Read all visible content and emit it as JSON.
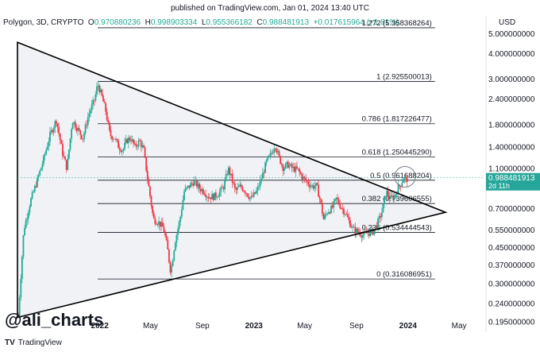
{
  "published": "published on TradingView.com, Jan 01, 2024 13:40 UTC",
  "header": {
    "symbol": "Polygon, 3D, CRYPTO",
    "o_label": "O",
    "o": "0.970880236",
    "h_label": "H",
    "h": "0.998903334",
    "l_label": "L",
    "l": "0.955366182",
    "c_label": "C",
    "c": "0.988481913",
    "change": "+0.017615964 (+1.81%)"
  },
  "currency": "USD",
  "watermark": "@ali_charts",
  "brand": "TradingView",
  "colors": {
    "up": "#22ab94",
    "down": "#f23645",
    "line": "#000000",
    "triangle_fill": "#f0f2f5",
    "price_label": "#26a69a"
  },
  "chart_data": {
    "type": "candlestick",
    "y_scale": "log",
    "y_range": [
      0.19,
      5.6
    ],
    "y_ticks": [
      {
        "v": 5.0,
        "label": "5.000000000"
      },
      {
        "v": 4.0,
        "label": "4.000000000"
      },
      {
        "v": 3.0,
        "label": "3.000000000"
      },
      {
        "v": 2.4,
        "label": "2.400000000"
      },
      {
        "v": 1.8,
        "label": "1.800000000"
      },
      {
        "v": 1.4,
        "label": "1.400000000"
      },
      {
        "v": 1.1,
        "label": "1.100000000"
      },
      {
        "v": 0.7,
        "label": "0.700000000"
      },
      {
        "v": 0.55,
        "label": "0.550000000"
      },
      {
        "v": 0.45,
        "label": "0.450000000"
      },
      {
        "v": 0.37,
        "label": "0.370000000"
      },
      {
        "v": 0.3,
        "label": "0.300000000"
      },
      {
        "v": 0.24,
        "label": "0.240000000"
      },
      {
        "v": 0.195,
        "label": "0.195000000"
      }
    ],
    "x_range": [
      "2021-06-20",
      "2024-06-30"
    ],
    "x_ticks": [
      {
        "date": "2022-01-01",
        "label": "2022"
      },
      {
        "date": "2022-05-01",
        "label": "May"
      },
      {
        "date": "2022-09-01",
        "label": "Sep"
      },
      {
        "date": "2023-01-01",
        "label": "2023"
      },
      {
        "date": "2023-05-01",
        "label": "May"
      },
      {
        "date": "2023-09-01",
        "label": "Sep"
      },
      {
        "date": "2024-01-01",
        "label": "2024"
      },
      {
        "date": "2024-05-01",
        "label": "May"
      }
    ],
    "fib_levels": [
      {
        "ratio": "1.272",
        "value": 5.358368264,
        "label": "1.272 (5.358368264)"
      },
      {
        "ratio": "1",
        "value": 2.9255,
        "label": "1 (2.925500013)"
      },
      {
        "ratio": "0.786",
        "value": 1.817226477,
        "label": "0.786 (1.817226477)"
      },
      {
        "ratio": "0.618",
        "value": 1.25044529,
        "label": "0.618 (1.250445290)"
      },
      {
        "ratio": "0.5",
        "value": 0.961688204,
        "label": "0.5 (0.961688204)"
      },
      {
        "ratio": "0.382",
        "value": 0.739606555,
        "label": "0.382 (0.739606555)"
      },
      {
        "ratio": "0.236",
        "value": 0.534444543,
        "label": "0.236 (0.534444543)"
      },
      {
        "ratio": "0",
        "value": 0.316086951,
        "label": "0 (0.316086951)"
      }
    ],
    "fib_start": "2021-12-27",
    "fib_end": "2024-03-05",
    "triangle": [
      {
        "date": "2021-06-20",
        "value": 4.55
      },
      {
        "date": "2024-03-30",
        "value": 0.67
      },
      {
        "date": "2021-06-20",
        "value": 0.205
      }
    ],
    "current_price": {
      "value": 0.988481913,
      "label": "0.988481913",
      "countdown": "2d 11h"
    },
    "marker_circle": {
      "date": "2023-12-25",
      "value": 1.0
    },
    "price_path": [
      [
        "2021-06-22",
        0.21
      ],
      [
        "2021-07-05",
        0.55
      ],
      [
        "2021-07-20",
        0.75
      ],
      [
        "2021-08-05",
        0.95
      ],
      [
        "2021-08-20",
        1.2
      ],
      [
        "2021-09-05",
        1.6
      ],
      [
        "2021-09-20",
        1.9
      ],
      [
        "2021-10-05",
        1.3
      ],
      [
        "2021-10-15",
        1.1
      ],
      [
        "2021-10-28",
        1.9
      ],
      [
        "2021-11-10",
        1.7
      ],
      [
        "2021-11-22",
        1.55
      ],
      [
        "2021-12-05",
        2.0
      ],
      [
        "2021-12-20",
        2.4
      ],
      [
        "2021-12-27",
        2.85
      ],
      [
        "2022-01-05",
        2.5
      ],
      [
        "2022-01-15",
        2.1
      ],
      [
        "2022-01-25",
        1.6
      ],
      [
        "2022-02-05",
        1.55
      ],
      [
        "2022-02-15",
        1.4
      ],
      [
        "2022-02-25",
        1.35
      ],
      [
        "2022-03-05",
        1.5
      ],
      [
        "2022-03-15",
        1.55
      ],
      [
        "2022-03-25",
        1.4
      ],
      [
        "2022-04-05",
        1.5
      ],
      [
        "2022-04-15",
        1.35
      ],
      [
        "2022-04-25",
        0.95
      ],
      [
        "2022-05-08",
        0.62
      ],
      [
        "2022-05-20",
        0.6
      ],
      [
        "2022-06-01",
        0.56
      ],
      [
        "2022-06-10",
        0.45
      ],
      [
        "2022-06-18",
        0.34
      ],
      [
        "2022-06-28",
        0.48
      ],
      [
        "2022-07-10",
        0.62
      ],
      [
        "2022-07-20",
        0.85
      ],
      [
        "2022-08-01",
        0.9
      ],
      [
        "2022-08-12",
        0.95
      ],
      [
        "2022-08-25",
        0.88
      ],
      [
        "2022-09-05",
        0.85
      ],
      [
        "2022-09-15",
        0.8
      ],
      [
        "2022-09-28",
        0.8
      ],
      [
        "2022-10-10",
        0.83
      ],
      [
        "2022-10-22",
        0.9
      ],
      [
        "2022-11-01",
        1.1
      ],
      [
        "2022-11-08",
        1.0
      ],
      [
        "2022-11-18",
        0.85
      ],
      [
        "2022-11-30",
        0.9
      ],
      [
        "2022-12-12",
        0.85
      ],
      [
        "2022-12-25",
        0.78
      ],
      [
        "2023-01-08",
        0.85
      ],
      [
        "2023-01-20",
        1.0
      ],
      [
        "2023-02-01",
        1.2
      ],
      [
        "2023-02-12",
        1.3
      ],
      [
        "2023-02-20",
        1.45
      ],
      [
        "2023-03-01",
        1.25
      ],
      [
        "2023-03-12",
        1.1
      ],
      [
        "2023-03-22",
        1.15
      ],
      [
        "2023-04-02",
        1.1
      ],
      [
        "2023-04-15",
        1.08
      ],
      [
        "2023-04-25",
        1.0
      ],
      [
        "2023-05-05",
        0.95
      ],
      [
        "2023-05-18",
        0.9
      ],
      [
        "2023-05-30",
        0.9
      ],
      [
        "2023-06-08",
        0.75
      ],
      [
        "2023-06-15",
        0.62
      ],
      [
        "2023-06-25",
        0.68
      ],
      [
        "2023-07-05",
        0.7
      ],
      [
        "2023-07-15",
        0.78
      ],
      [
        "2023-07-25",
        0.72
      ],
      [
        "2023-08-05",
        0.67
      ],
      [
        "2023-08-15",
        0.6
      ],
      [
        "2023-08-25",
        0.55
      ],
      [
        "2023-09-05",
        0.54
      ],
      [
        "2023-09-15",
        0.52
      ],
      [
        "2023-09-28",
        0.53
      ],
      [
        "2023-10-10",
        0.54
      ],
      [
        "2023-10-22",
        0.6
      ],
      [
        "2023-11-01",
        0.68
      ],
      [
        "2023-11-10",
        0.85
      ],
      [
        "2023-11-20",
        0.78
      ],
      [
        "2023-11-30",
        0.8
      ],
      [
        "2023-12-08",
        0.88
      ],
      [
        "2023-12-15",
        0.92
      ],
      [
        "2023-12-22",
        1.0
      ],
      [
        "2023-12-28",
        0.96
      ],
      [
        "2024-01-01",
        0.988
      ]
    ]
  }
}
